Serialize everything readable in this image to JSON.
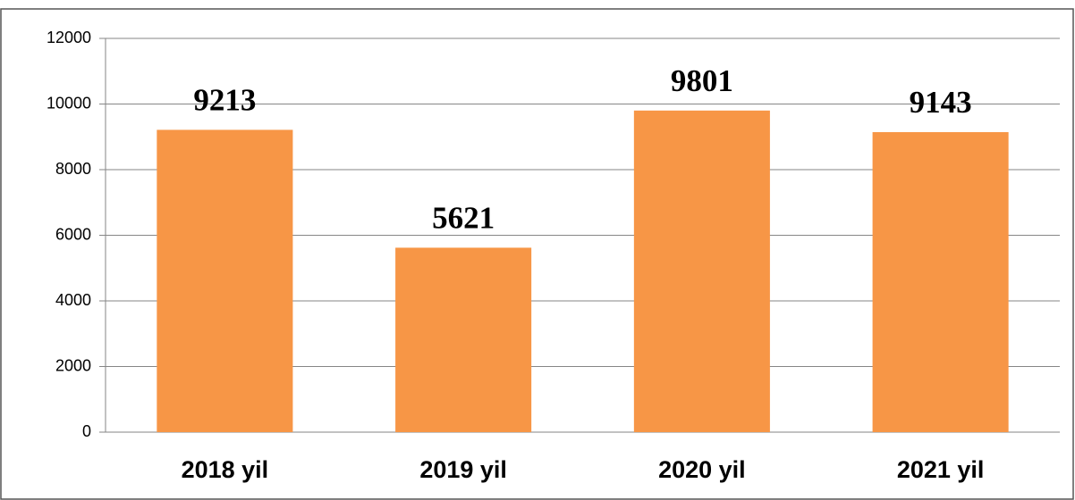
{
  "chart_data": {
    "type": "bar",
    "categories": [
      "2018 yil",
      "2019 yil",
      "2020 yil",
      "2021 yil"
    ],
    "values": [
      9213,
      5621,
      9801,
      9143
    ],
    "color": "#f79646",
    "ylim": [
      0,
      12000
    ],
    "yticks": [
      0,
      2000,
      4000,
      6000,
      8000,
      10000,
      12000
    ],
    "grid": true
  }
}
